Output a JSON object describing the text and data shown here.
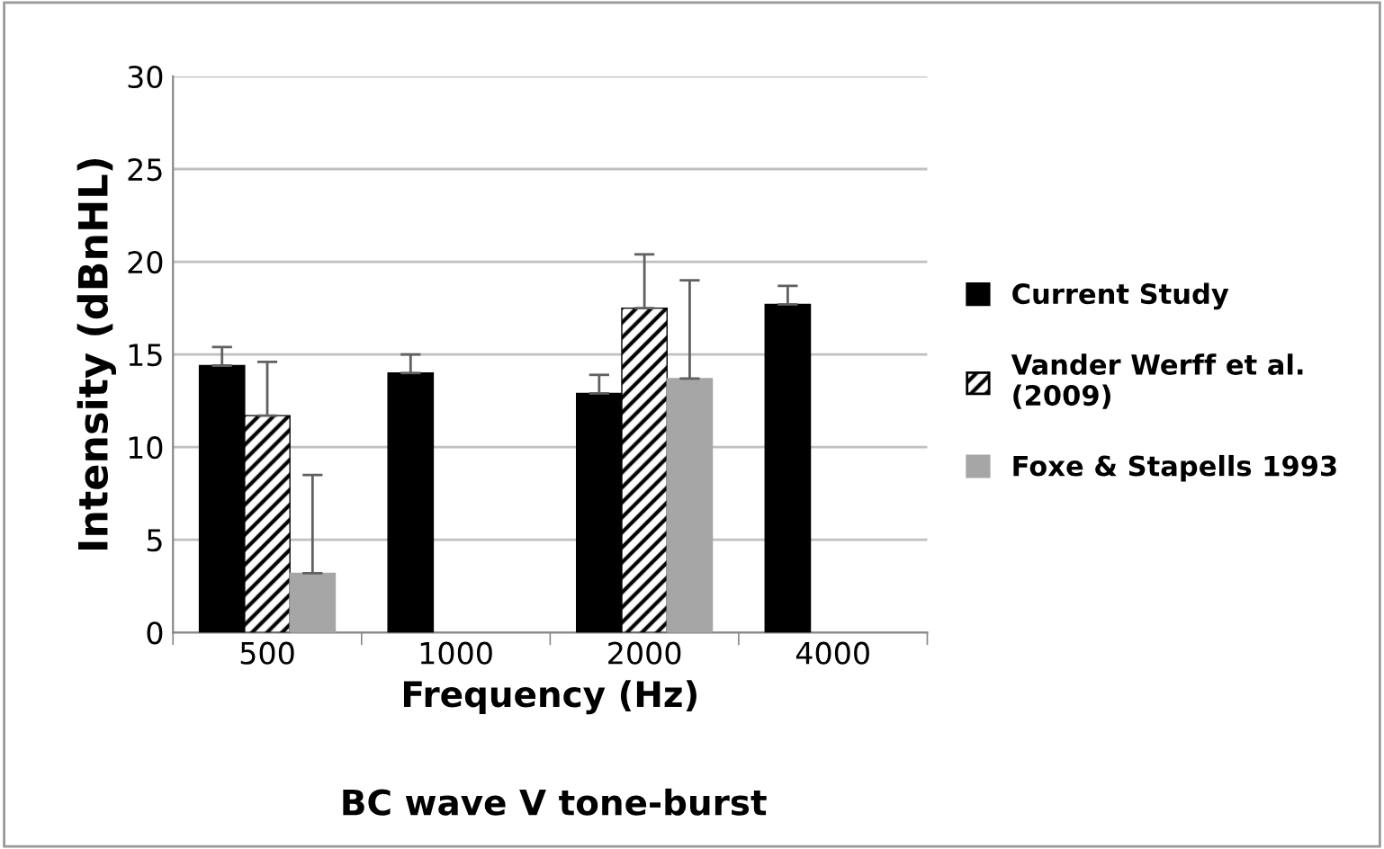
{
  "chart_data": {
    "type": "bar",
    "title": "BC wave V tone-burst",
    "xlabel": "Frequency (Hz)",
    "ylabel": "Intensity (dBnHL)",
    "categories": [
      "500",
      "1000",
      "2000",
      "4000"
    ],
    "series": [
      {
        "name": "Current Study",
        "color": "#000000",
        "values": [
          14.4,
          14.0,
          12.9,
          17.7
        ],
        "errors": [
          [
            14.4,
            15.4
          ],
          [
            14.0,
            15.0
          ],
          [
            12.9,
            13.9
          ],
          [
            17.7,
            18.7
          ]
        ]
      },
      {
        "name": "Vander Werff et al. (2009)",
        "color": "#000000",
        "values": [
          11.7,
          null,
          17.5,
          null
        ],
        "errors": [
          [
            11.7,
            14.6
          ],
          null,
          [
            17.5,
            20.4
          ],
          null
        ]
      },
      {
        "name": "Foxe & Stapells 1993",
        "color": "#a6a6a6",
        "values": [
          3.2,
          null,
          13.7,
          null
        ],
        "errors": [
          [
            3.2,
            8.5
          ],
          null,
          [
            13.7,
            19.0
          ],
          null
        ]
      }
    ],
    "ylim": [
      0,
      30
    ],
    "yticks": [
      0,
      5,
      10,
      15,
      20,
      25,
      30
    ],
    "grid": "y",
    "legend": "right"
  }
}
